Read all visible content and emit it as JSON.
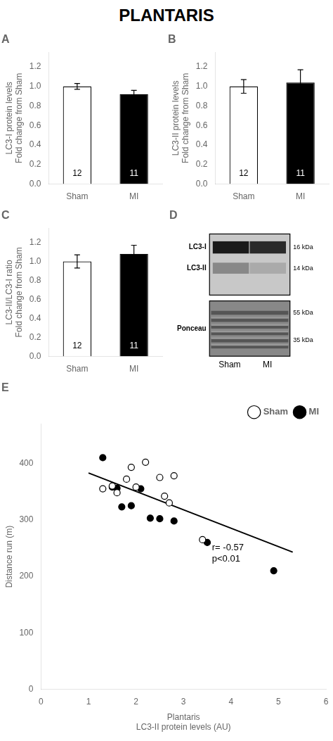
{
  "title": "PLANTARIS",
  "chart_data": [
    {
      "type": "bar",
      "title": "A",
      "categories": [
        "Sham",
        "MI"
      ],
      "values": [
        1.0,
        0.92
      ],
      "errors": [
        0.03,
        0.04
      ],
      "n": [
        12,
        11
      ],
      "colors": [
        "#ffffff",
        "#000000"
      ],
      "ylabel": [
        "LC3-I protein levels",
        "Fold change from Sham"
      ],
      "ylim": [
        0.0,
        1.35
      ],
      "yticks": [
        {
          "value": 0.0,
          "label": "0.0"
        },
        0.2,
        0.4,
        0.6,
        0.8,
        {
          "value": 1.0,
          "label": "1.0"
        },
        1.2
      ],
      "grid": false
    },
    {
      "type": "bar",
      "title": "B",
      "categories": [
        "Sham",
        "MI"
      ],
      "values": [
        1.0,
        1.04
      ],
      "errors": [
        0.07,
        0.13
      ],
      "n": [
        12,
        11
      ],
      "colors": [
        "#ffffff",
        "#000000"
      ],
      "ylabel": [
        "LC3-II protein levels",
        "Fold change from Sham"
      ],
      "ylim": [
        0.0,
        1.35
      ],
      "yticks": [
        {
          "value": 0.0,
          "label": "0.0"
        },
        0.2,
        0.4,
        0.6,
        0.8,
        {
          "value": 1.0,
          "label": "1.0"
        },
        1.2
      ],
      "grid": false
    },
    {
      "type": "bar",
      "title": "C",
      "categories": [
        "Sham",
        "MI"
      ],
      "values": [
        1.0,
        1.08
      ],
      "errors": [
        0.07,
        0.09
      ],
      "n": [
        12,
        11
      ],
      "colors": [
        "#ffffff",
        "#000000"
      ],
      "ylabel": [
        "LC3-II/LC3-I ratio",
        "Fold change from Sham"
      ],
      "ylim": [
        0.0,
        1.35
      ],
      "yticks": [
        {
          "value": 0.0,
          "label": "0.0"
        },
        0.2,
        0.4,
        0.6,
        0.8,
        {
          "value": 1.0,
          "label": "1.0"
        },
        1.2
      ],
      "grid": false
    },
    {
      "type": "blot",
      "title": "D",
      "categories": [
        "Sham",
        "MI"
      ],
      "annotations": [
        "LC3-I",
        "LC3-II",
        "Ponceau",
        "16 kDa",
        "14 kDa",
        "55 kDa",
        "35 kDa"
      ]
    },
    {
      "type": "scatter",
      "title": "E",
      "xlabel": [
        "Plantaris",
        "LC3-II protein levels (AU)"
      ],
      "ylabel": "Distance run (m)",
      "xlim": [
        0,
        6
      ],
      "ylim": [
        0,
        470
      ],
      "xticks": [
        0,
        1,
        2,
        3,
        4,
        5,
        6
      ],
      "yticks": [
        0,
        100,
        200,
        300,
        400
      ],
      "series": [
        {
          "name": "Sham",
          "type": "scatter",
          "marker": "circle",
          "color": "#ffffff",
          "x": [
            1.3,
            1.5,
            1.6,
            1.8,
            1.9,
            2.0,
            2.2,
            2.5,
            2.6,
            2.7,
            2.8,
            3.4
          ],
          "values": [
            355,
            360,
            348,
            372,
            393,
            358,
            402,
            375,
            342,
            330,
            378,
            265
          ]
        },
        {
          "name": "MI",
          "type": "scatter",
          "marker": "circle",
          "color": "#000000",
          "x": [
            1.3,
            1.5,
            1.6,
            1.7,
            1.9,
            2.1,
            2.3,
            2.5,
            2.8,
            3.5,
            4.9
          ],
          "values": [
            410,
            358,
            356,
            323,
            325,
            355,
            303,
            302,
            298,
            260,
            210
          ]
        },
        {
          "type": "line",
          "line_style": "solid",
          "color": "#000000",
          "x": [
            1.0,
            5.3
          ],
          "values": [
            383,
            243
          ]
        }
      ],
      "annotations": [
        "r= -0.57",
        "p<0.01"
      ],
      "legend": "upper right",
      "grid": false
    }
  ]
}
